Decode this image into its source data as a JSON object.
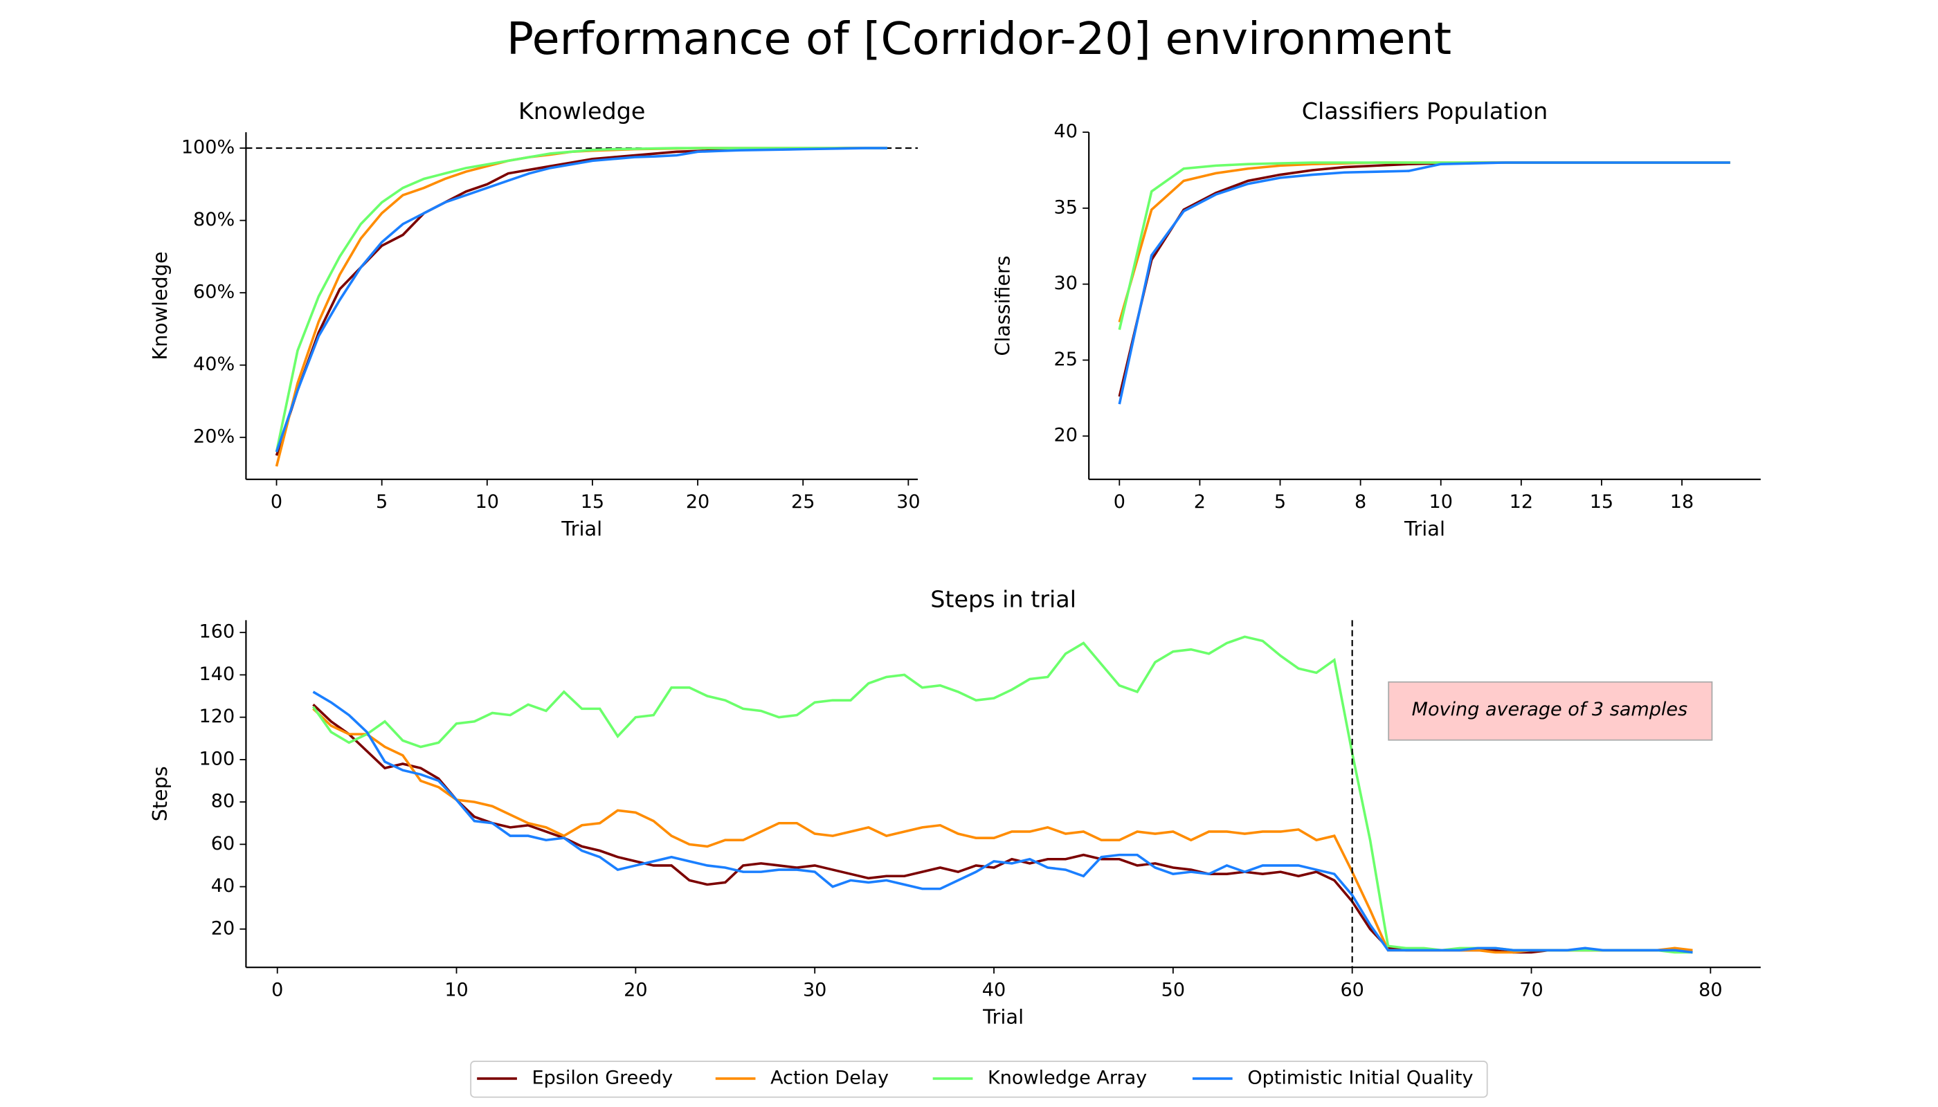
{
  "title": "Performance of [Corridor-20] environment",
  "legend": [
    {
      "name": "Epsilon Greedy",
      "color": "#7b0000"
    },
    {
      "name": "Action Delay",
      "color": "#ff8c00"
    },
    {
      "name": "Knowledge Array",
      "color": "#6bff6b"
    },
    {
      "name": "Optimistic Initial Quality",
      "color": "#1a7fff"
    }
  ],
  "chart_data": [
    {
      "type": "line",
      "title": "Knowledge",
      "x_label": "Trial",
      "y_label": "Knowledge",
      "x": [
        0,
        1,
        2,
        3,
        4,
        5,
        6,
        7,
        8,
        9,
        10,
        11,
        12,
        13,
        14,
        15,
        16,
        17,
        18,
        19,
        20,
        21,
        22,
        23,
        24,
        25,
        26,
        27,
        28,
        29
      ],
      "xlim": [
        -1.45,
        30.45
      ],
      "xticks": [
        0,
        5,
        10,
        15,
        20,
        25,
        30
      ],
      "ylim": [
        8.4,
        104.4
      ],
      "yticks": [
        {
          "value": 20,
          "label": "20%"
        },
        {
          "value": 40,
          "label": "40%"
        },
        {
          "value": 60,
          "label": "60%"
        },
        {
          "value": 80,
          "label": "80%"
        },
        {
          "value": 100,
          "label": "100%"
        }
      ],
      "hline": 100,
      "series": [
        {
          "values": [
            15,
            33,
            49,
            61,
            67,
            73,
            76,
            82,
            85,
            88,
            90,
            93,
            94,
            95,
            96,
            97,
            97.5,
            98,
            98.5,
            99,
            99.2,
            99.4,
            99.5,
            99.6,
            99.7,
            99.8,
            99.9,
            100,
            100,
            100
          ]
        },
        {
          "values": [
            12,
            35,
            52,
            65,
            75,
            82,
            87,
            89,
            91.5,
            93.5,
            95,
            96.5,
            97.5,
            98.2,
            99,
            99.3,
            99.5,
            99.7,
            99.8,
            99.9,
            100,
            100,
            100,
            100,
            100,
            100,
            100,
            100,
            100,
            100
          ]
        },
        {
          "values": [
            16,
            44,
            59,
            70,
            79,
            85,
            89,
            91.5,
            93,
            94.5,
            95.5,
            96.5,
            97.5,
            98.5,
            99,
            99.5,
            99.7,
            99.8,
            99.9,
            100,
            100,
            100,
            100,
            100,
            100,
            100,
            100,
            100,
            100,
            100
          ]
        },
        {
          "values": [
            16,
            33,
            48,
            58,
            67,
            74,
            79,
            82,
            85,
            87,
            89,
            91,
            93,
            94.5,
            95.5,
            96.5,
            97,
            97.5,
            97.7,
            98,
            99,
            99.2,
            99.4,
            99.5,
            99.6,
            99.7,
            99.8,
            99.9,
            100,
            100
          ]
        }
      ]
    },
    {
      "type": "line",
      "title": "Classifiers Population",
      "x_label": "Trial",
      "y_label": "Classifiers",
      "x": [
        0,
        1,
        2,
        3,
        4,
        5,
        6,
        7,
        8,
        9,
        10,
        11,
        12,
        13,
        14,
        15,
        16,
        17,
        18,
        19
      ],
      "xlim": [
        -0.95,
        19.95
      ],
      "xticks": [
        0,
        {
          "value": 2.5,
          "label": "2"
        },
        5,
        {
          "value": 7.5,
          "label": "8"
        },
        10,
        {
          "value": 12.5,
          "label": "12"
        },
        15,
        {
          "value": 17.5,
          "label": "18"
        }
      ],
      "ylim": [
        17.15,
        40
      ],
      "yticks": [
        20,
        25,
        30,
        35,
        40
      ],
      "series": [
        {
          "values": [
            22.6,
            31.6,
            34.9,
            36,
            36.8,
            37.2,
            37.5,
            37.7,
            37.8,
            37.9,
            37.95,
            38,
            38,
            38,
            38,
            38,
            38,
            38,
            38,
            38
          ]
        },
        {
          "values": [
            27.5,
            34.9,
            36.8,
            37.3,
            37.6,
            37.8,
            37.9,
            37.95,
            38,
            38,
            38,
            38,
            38,
            38,
            38,
            38,
            38,
            38,
            38,
            38
          ]
        },
        {
          "values": [
            27,
            36.1,
            37.6,
            37.8,
            37.9,
            37.95,
            38,
            38,
            38,
            38,
            38,
            38,
            38,
            38,
            38,
            38,
            38,
            38,
            38,
            38
          ]
        },
        {
          "values": [
            22.1,
            31.9,
            34.8,
            35.9,
            36.6,
            37,
            37.2,
            37.35,
            37.4,
            37.45,
            37.9,
            37.95,
            38,
            38,
            38,
            38,
            38,
            38,
            38,
            38
          ]
        }
      ]
    },
    {
      "type": "line",
      "title": "Steps in trial",
      "x_label": "Trial",
      "y_label": "Steps",
      "x": [
        2,
        3,
        4,
        5,
        6,
        7,
        8,
        9,
        10,
        11,
        12,
        13,
        14,
        15,
        16,
        17,
        18,
        19,
        20,
        21,
        22,
        23,
        24,
        25,
        26,
        27,
        28,
        29,
        30,
        31,
        32,
        33,
        34,
        35,
        36,
        37,
        38,
        39,
        40,
        41,
        42,
        43,
        44,
        45,
        46,
        47,
        48,
        49,
        50,
        51,
        52,
        53,
        54,
        55,
        56,
        57,
        58,
        59,
        60,
        61,
        62,
        63,
        64,
        65,
        66,
        67,
        68,
        69,
        70,
        71,
        72,
        73,
        74,
        75,
        76,
        77,
        78,
        79
      ],
      "xlim": [
        -1.75,
        82.8
      ],
      "xticks": [
        0,
        10,
        20,
        30,
        40,
        50,
        60,
        70,
        80
      ],
      "ylim": [
        1.9,
        165.8
      ],
      "yticks": [
        20,
        40,
        60,
        80,
        100,
        120,
        140,
        160
      ],
      "vline": 60,
      "annotation": "Moving average of 3 samples",
      "series": [
        {
          "values": [
            126,
            118,
            112,
            104,
            96,
            98,
            96,
            91,
            81,
            73,
            70,
            68,
            69,
            66,
            63,
            59,
            57,
            54,
            52,
            50,
            50,
            43,
            41,
            42,
            50,
            51,
            50,
            49,
            50,
            48,
            46,
            44,
            45,
            45,
            47,
            49,
            47,
            50,
            49,
            53,
            51,
            53,
            53,
            55,
            53,
            53,
            50,
            51,
            49,
            48,
            46,
            46,
            47,
            46,
            47,
            45,
            47,
            43,
            33,
            20,
            11,
            10,
            10,
            10,
            10,
            10,
            10,
            9,
            9,
            10,
            10,
            10,
            10,
            10,
            10,
            10,
            10,
            9
          ]
        },
        {
          "values": [
            124,
            116,
            112,
            112,
            106,
            102,
            90,
            87,
            81,
            80,
            78,
            74,
            70,
            68,
            64,
            69,
            70,
            76,
            75,
            71,
            64,
            60,
            59,
            62,
            62,
            66,
            70,
            70,
            65,
            64,
            66,
            68,
            64,
            66,
            68,
            69,
            65,
            63,
            63,
            66,
            66,
            68,
            65,
            66,
            62,
            62,
            66,
            65,
            66,
            62,
            66,
            66,
            65,
            66,
            66,
            67,
            62,
            64,
            47,
            29,
            10,
            10,
            10,
            10,
            10,
            10,
            9,
            9,
            10,
            10,
            10,
            10,
            10,
            10,
            10,
            10,
            11,
            10
          ]
        },
        {
          "values": [
            125,
            113,
            108,
            112,
            118,
            109,
            106,
            108,
            117,
            118,
            122,
            121,
            126,
            123,
            132,
            124,
            124,
            111,
            120,
            121,
            134,
            134,
            130,
            128,
            124,
            123,
            120,
            121,
            127,
            128,
            128,
            136,
            139,
            140,
            134,
            135,
            132,
            128,
            129,
            133,
            138,
            139,
            150,
            155,
            145,
            135,
            132,
            146,
            151,
            152,
            150,
            155,
            158,
            156,
            149,
            143,
            141,
            147,
            103,
            62,
            12,
            11,
            11,
            10,
            11,
            11,
            11,
            10,
            10,
            10,
            10,
            10,
            10,
            10,
            10,
            10,
            9,
            9
          ]
        },
        {
          "values": [
            132,
            127,
            121,
            113,
            99,
            95,
            93,
            90,
            81,
            71,
            70,
            64,
            64,
            62,
            63,
            57,
            54,
            48,
            50,
            52,
            54,
            52,
            50,
            49,
            47,
            47,
            48,
            48,
            47,
            40,
            43,
            42,
            43,
            41,
            39,
            39,
            43,
            47,
            52,
            51,
            53,
            49,
            48,
            45,
            54,
            55,
            55,
            49,
            46,
            47,
            46,
            50,
            47,
            50,
            50,
            50,
            48,
            46,
            36,
            22,
            10,
            10,
            10,
            10,
            10,
            11,
            11,
            10,
            10,
            10,
            10,
            11,
            10,
            10,
            10,
            10,
            10,
            9
          ]
        }
      ]
    }
  ]
}
